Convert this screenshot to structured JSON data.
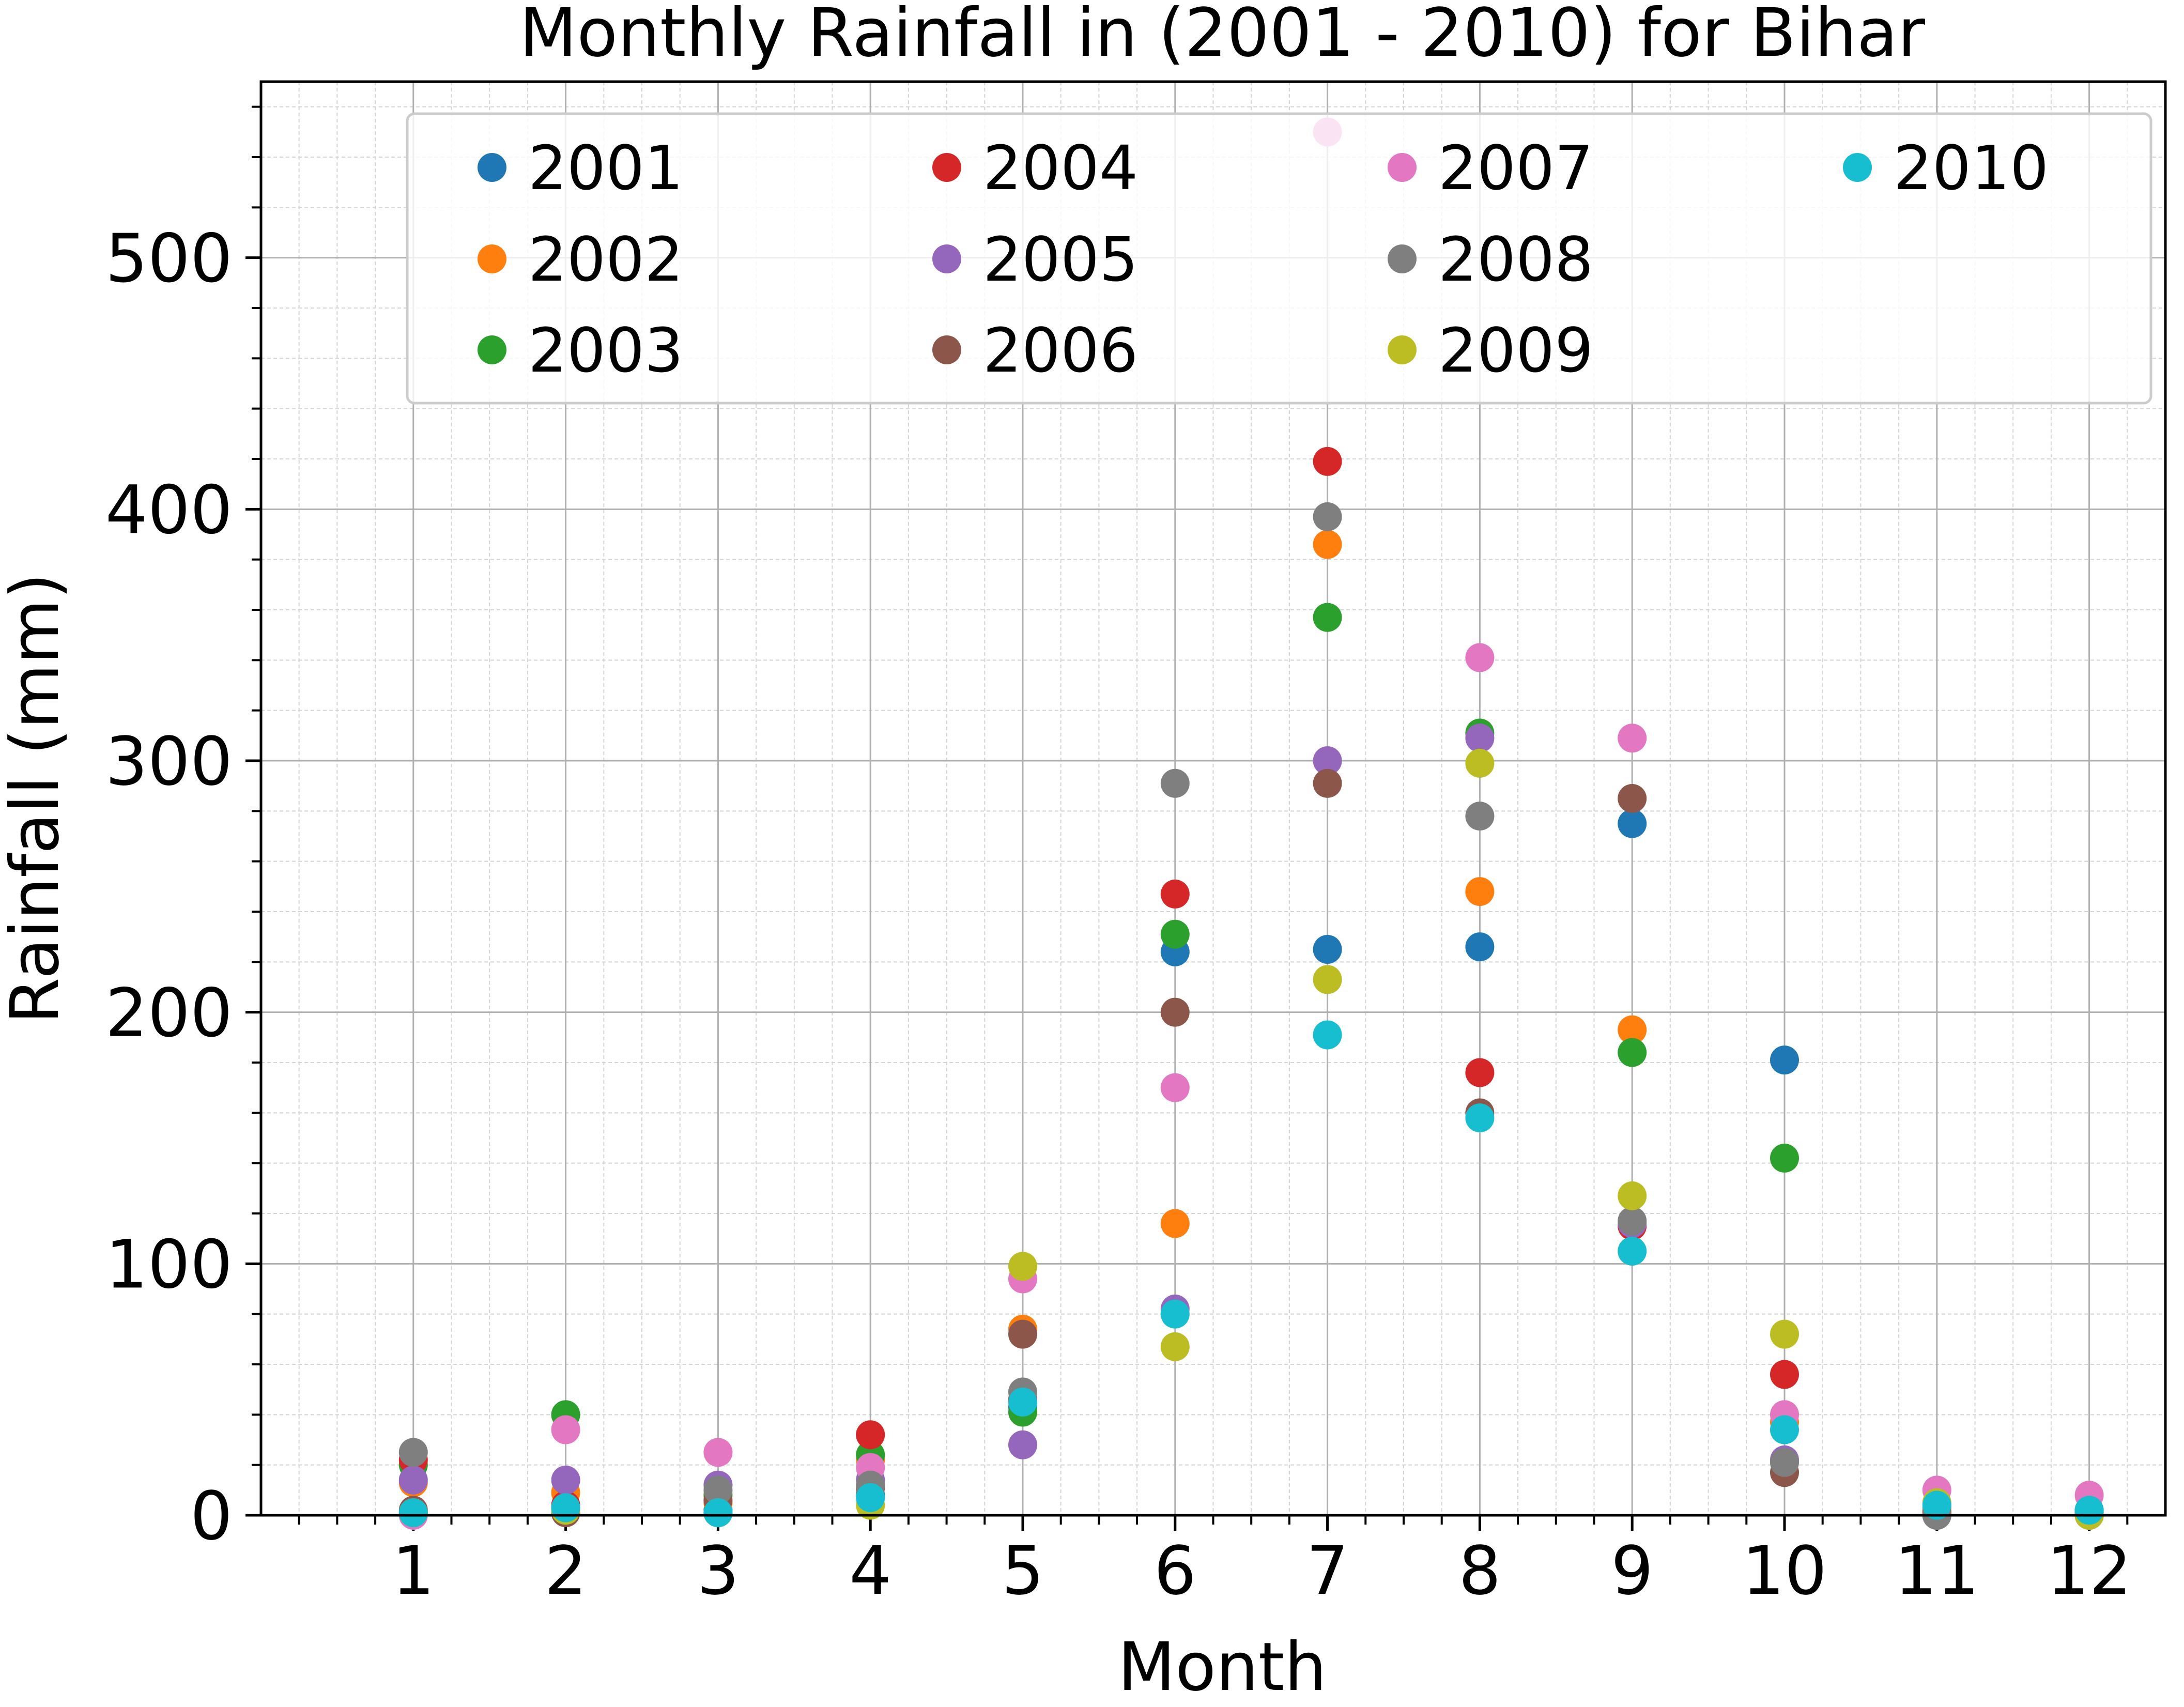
{
  "chart_data": {
    "type": "scatter",
    "title": "Monthly Rainfall in (2001 - 2010) for Bihar",
    "xlabel": "Month",
    "ylabel": "Rainfall (mm)",
    "xlim": [
      0,
      12.5
    ],
    "ylim": [
      0,
      570
    ],
    "xticks": [
      1,
      2,
      3,
      4,
      5,
      6,
      7,
      8,
      9,
      10,
      11,
      12
    ],
    "yticks": [
      0,
      100,
      200,
      300,
      400,
      500
    ],
    "grid": "major and minor",
    "legend_placement": "top, 4 columns",
    "x": [
      1,
      2,
      3,
      4,
      5,
      6,
      7,
      8,
      9,
      10,
      11,
      12
    ],
    "series": [
      {
        "name": "2001",
        "color": "#1f77b4",
        "values": [
          1,
          3,
          2,
          8,
          43,
          224,
          225,
          226,
          275,
          181,
          3,
          1
        ]
      },
      {
        "name": "2002",
        "color": "#ff7f0e",
        "values": [
          13,
          9,
          5,
          22,
          74,
          116,
          386,
          248,
          193,
          37,
          2,
          1
        ]
      },
      {
        "name": "2003",
        "color": "#2ca02c",
        "values": [
          20,
          40,
          8,
          24,
          41,
          231,
          357,
          311,
          184,
          142,
          0,
          2
        ]
      },
      {
        "name": "2004",
        "color": "#d62728",
        "values": [
          22,
          4,
          1,
          32,
          46,
          247,
          419,
          176,
          115,
          56,
          1,
          0
        ]
      },
      {
        "name": "2005",
        "color": "#9467bd",
        "values": [
          14,
          14,
          12,
          14,
          28,
          82,
          300,
          309,
          116,
          22,
          0,
          0
        ]
      },
      {
        "name": "2006",
        "color": "#8c564b",
        "values": [
          2,
          1,
          6,
          11,
          72,
          200,
          291,
          160,
          285,
          17,
          1,
          1
        ]
      },
      {
        "name": "2007",
        "color": "#e377c2",
        "values": [
          0,
          34,
          25,
          19,
          94,
          170,
          550,
          341,
          309,
          40,
          10,
          8
        ]
      },
      {
        "name": "2008",
        "color": "#7f7f7f",
        "values": [
          25,
          3,
          10,
          12,
          49,
          291,
          397,
          278,
          117,
          21,
          0,
          1
        ]
      },
      {
        "name": "2009",
        "color": "#bcbd22",
        "values": [
          1,
          2,
          1,
          4,
          99,
          67,
          213,
          299,
          127,
          72,
          5,
          0
        ]
      },
      {
        "name": "2010",
        "color": "#17becf",
        "values": [
          1,
          3,
          1,
          7,
          45,
          80,
          191,
          158,
          105,
          34,
          4,
          2
        ]
      }
    ]
  }
}
